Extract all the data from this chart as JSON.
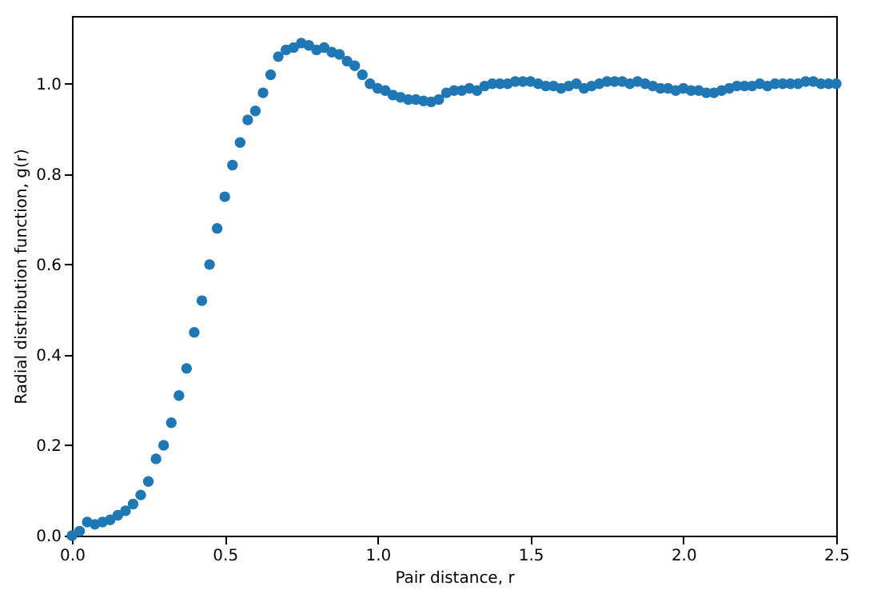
{
  "chart_data": {
    "type": "scatter",
    "xlabel": "Pair distance, r",
    "ylabel": "Radial distribution function, g(r)",
    "marker": "circle",
    "grid": false,
    "xlim": [
      0,
      2.5
    ],
    "ylim": [
      0,
      1.15
    ],
    "xticks": [
      {
        "value": 0,
        "label": "0.0"
      },
      {
        "value": 0.5,
        "label": "0.5"
      },
      {
        "value": 1,
        "label": "1.0"
      },
      {
        "value": 1.5,
        "label": "1.5"
      },
      {
        "value": 2,
        "label": "2.0"
      },
      {
        "value": 2.5,
        "label": "2.5"
      }
    ],
    "yticks": [
      {
        "value": 0,
        "label": "0.0"
      },
      {
        "value": 0.2,
        "label": "0.2"
      },
      {
        "value": 0.4,
        "label": "0.4"
      },
      {
        "value": 0.6,
        "label": "0.6"
      },
      {
        "value": 0.8,
        "label": "0.8"
      },
      {
        "value": 1,
        "label": "1.0"
      }
    ],
    "series": [
      {
        "color": "#1f77b4",
        "x": [
          0,
          0.025,
          0.05,
          0.075,
          0.1,
          0.125,
          0.15,
          0.175,
          0.2,
          0.225,
          0.25,
          0.275,
          0.3,
          0.325,
          0.35,
          0.375,
          0.4,
          0.425,
          0.45,
          0.475,
          0.5,
          0.525,
          0.55,
          0.575,
          0.6,
          0.625,
          0.65,
          0.675,
          0.7,
          0.725,
          0.75,
          0.775,
          0.8,
          0.825,
          0.85,
          0.875,
          0.9,
          0.925,
          0.95,
          0.975,
          1.0,
          1.025,
          1.05,
          1.075,
          1.1,
          1.125,
          1.15,
          1.175,
          1.2,
          1.225,
          1.25,
          1.275,
          1.3,
          1.325,
          1.35,
          1.375,
          1.4,
          1.425,
          1.45,
          1.475,
          1.5,
          1.525,
          1.55,
          1.575,
          1.6,
          1.625,
          1.65,
          1.675,
          1.7,
          1.725,
          1.75,
          1.775,
          1.8,
          1.825,
          1.85,
          1.875,
          1.9,
          1.925,
          1.95,
          1.975,
          2.0,
          2.025,
          2.05,
          2.075,
          2.1,
          2.125,
          2.15,
          2.175,
          2.2,
          2.225,
          2.25,
          2.275,
          2.3,
          2.325,
          2.35,
          2.375,
          2.4,
          2.425,
          2.45,
          2.475,
          2.5
        ],
        "values": [
          0.0,
          0.01,
          0.03,
          0.025,
          0.03,
          0.035,
          0.045,
          0.055,
          0.07,
          0.09,
          0.12,
          0.17,
          0.2,
          0.25,
          0.31,
          0.37,
          0.45,
          0.52,
          0.6,
          0.68,
          0.75,
          0.82,
          0.87,
          0.92,
          0.94,
          0.98,
          1.02,
          1.06,
          1.075,
          1.08,
          1.09,
          1.085,
          1.075,
          1.08,
          1.07,
          1.065,
          1.05,
          1.04,
          1.02,
          1.0,
          0.99,
          0.985,
          0.975,
          0.97,
          0.965,
          0.965,
          0.962,
          0.96,
          0.965,
          0.98,
          0.985,
          0.985,
          0.99,
          0.985,
          0.995,
          1.0,
          1.0,
          1.0,
          1.005,
          1.005,
          1.005,
          1.0,
          0.995,
          0.995,
          0.99,
          0.995,
          1.0,
          0.99,
          0.995,
          1.0,
          1.005,
          1.005,
          1.005,
          1.0,
          1.005,
          1.0,
          0.995,
          0.99,
          0.99,
          0.985,
          0.99,
          0.985,
          0.985,
          0.98,
          0.98,
          0.985,
          0.99,
          0.995,
          0.995,
          0.995,
          1.0,
          0.995,
          1.0,
          1.0,
          1.0,
          1.0,
          1.005,
          1.005,
          1.0,
          1.0,
          1.0
        ]
      }
    ]
  }
}
